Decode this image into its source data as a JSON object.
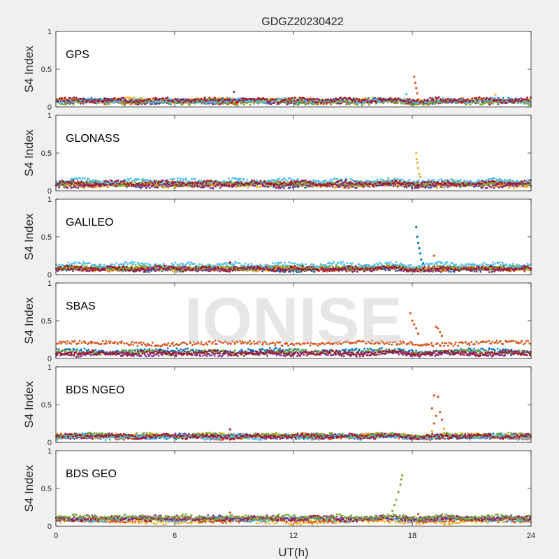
{
  "chart_data": {
    "type": "scatter",
    "title": "GDGZ20230422",
    "xlabel": "UT(h)",
    "ylabel": "S4 Index",
    "xlim": [
      0,
      24
    ],
    "ylim": [
      0,
      1
    ],
    "xticks": [
      "0",
      "6",
      "12",
      "18",
      "24"
    ],
    "yticks": [
      "0",
      "0.5",
      "1"
    ],
    "watermark": "IONISE",
    "series_colors": [
      "#0072BD",
      "#D95319",
      "#EDB120",
      "#7E2F8E",
      "#77AC30",
      "#4DBEEE",
      "#A2142F"
    ],
    "panels": [
      {
        "label": "GPS",
        "baseline": [
          {
            "color": "#0072BD",
            "level": 0.08
          },
          {
            "color": "#D95319",
            "level": 0.07
          },
          {
            "color": "#EDB120",
            "level": 0.09
          },
          {
            "color": "#7E2F8E",
            "level": 0.07
          },
          {
            "color": "#77AC30",
            "level": 0.06
          },
          {
            "color": "#4DBEEE",
            "level": 0.08
          },
          {
            "color": "#A2142F",
            "level": 0.09
          }
        ],
        "spikes": [
          {
            "color": "#D95319",
            "x": 18.1,
            "y": 0.4
          },
          {
            "color": "#D95319",
            "x": 18.15,
            "y": 0.32
          },
          {
            "color": "#D95319",
            "x": 18.2,
            "y": 0.25
          },
          {
            "color": "#D95319",
            "x": 18.25,
            "y": 0.18
          },
          {
            "color": "#4DBEEE",
            "x": 17.7,
            "y": 0.17
          },
          {
            "color": "#7E2F8E",
            "x": 9.0,
            "y": 0.2
          },
          {
            "color": "#EDB120",
            "x": 22.2,
            "y": 0.16
          }
        ]
      },
      {
        "label": "GLONASS",
        "baseline": [
          {
            "color": "#0072BD",
            "level": 0.08
          },
          {
            "color": "#D95319",
            "level": 0.09
          },
          {
            "color": "#EDB120",
            "level": 0.07
          },
          {
            "color": "#7E2F8E",
            "level": 0.07
          },
          {
            "color": "#77AC30",
            "level": 0.1
          },
          {
            "color": "#4DBEEE",
            "level": 0.13
          },
          {
            "color": "#A2142F",
            "level": 0.1
          }
        ],
        "spikes": [
          {
            "color": "#EDB120",
            "x": 18.2,
            "y": 0.5
          },
          {
            "color": "#EDB120",
            "x": 18.22,
            "y": 0.42
          },
          {
            "color": "#EDB120",
            "x": 18.25,
            "y": 0.37
          },
          {
            "color": "#EDB120",
            "x": 18.3,
            "y": 0.3
          },
          {
            "color": "#EDB120",
            "x": 18.35,
            "y": 0.22
          },
          {
            "color": "#EDB120",
            "x": 18.4,
            "y": 0.18
          }
        ]
      },
      {
        "label": "GALILEO",
        "baseline": [
          {
            "color": "#0072BD",
            "level": 0.07
          },
          {
            "color": "#D95319",
            "level": 0.08
          },
          {
            "color": "#EDB120",
            "level": 0.08
          },
          {
            "color": "#7E2F8E",
            "level": 0.07
          },
          {
            "color": "#77AC30",
            "level": 0.09
          },
          {
            "color": "#4DBEEE",
            "level": 0.13
          },
          {
            "color": "#A2142F",
            "level": 0.08
          }
        ],
        "spikes": [
          {
            "color": "#0072BD",
            "x": 18.2,
            "y": 0.63
          },
          {
            "color": "#0072BD",
            "x": 18.25,
            "y": 0.5
          },
          {
            "color": "#0072BD",
            "x": 18.3,
            "y": 0.42
          },
          {
            "color": "#0072BD",
            "x": 18.35,
            "y": 0.35
          },
          {
            "color": "#0072BD",
            "x": 18.4,
            "y": 0.28
          },
          {
            "color": "#0072BD",
            "x": 18.45,
            "y": 0.2
          },
          {
            "color": "#0072BD",
            "x": 18.55,
            "y": 0.15
          },
          {
            "color": "#D95319",
            "x": 19.1,
            "y": 0.25
          },
          {
            "color": "#A2142F",
            "x": 8.8,
            "y": 0.16
          }
        ]
      },
      {
        "label": "SBAS",
        "baseline": [
          {
            "color": "#D95319",
            "level": 0.2
          },
          {
            "color": "#0072BD",
            "level": 0.1
          },
          {
            "color": "#77AC30",
            "level": 0.08
          },
          {
            "color": "#7E2F8E",
            "level": 0.06
          },
          {
            "color": "#A2142F",
            "level": 0.07
          }
        ],
        "spikes": [
          {
            "color": "#D95319",
            "x": 17.9,
            "y": 0.6
          },
          {
            "color": "#D95319",
            "x": 18.0,
            "y": 0.5
          },
          {
            "color": "#D95319",
            "x": 18.1,
            "y": 0.45
          },
          {
            "color": "#D95319",
            "x": 18.2,
            "y": 0.4
          },
          {
            "color": "#D95319",
            "x": 18.3,
            "y": 0.33
          },
          {
            "color": "#D95319",
            "x": 19.2,
            "y": 0.42
          },
          {
            "color": "#D95319",
            "x": 19.3,
            "y": 0.4
          },
          {
            "color": "#D95319",
            "x": 19.4,
            "y": 0.35
          },
          {
            "color": "#D95319",
            "x": 19.5,
            "y": 0.3
          }
        ]
      },
      {
        "label": "BDS NGEO",
        "baseline": [
          {
            "color": "#0072BD",
            "level": 0.08
          },
          {
            "color": "#D95319",
            "level": 0.07
          },
          {
            "color": "#EDB120",
            "level": 0.09
          },
          {
            "color": "#7E2F8E",
            "level": 0.08
          },
          {
            "color": "#77AC30",
            "level": 0.09
          },
          {
            "color": "#4DBEEE",
            "level": 0.07
          },
          {
            "color": "#A2142F",
            "level": 0.08
          }
        ],
        "spikes": [
          {
            "color": "#D95319",
            "x": 19.1,
            "y": 0.62
          },
          {
            "color": "#D95319",
            "x": 19.3,
            "y": 0.6
          },
          {
            "color": "#D95319",
            "x": 19.0,
            "y": 0.45
          },
          {
            "color": "#D95319",
            "x": 19.4,
            "y": 0.4
          },
          {
            "color": "#D95319",
            "x": 19.2,
            "y": 0.35
          },
          {
            "color": "#D95319",
            "x": 19.5,
            "y": 0.3
          },
          {
            "color": "#D95319",
            "x": 19.1,
            "y": 0.25
          },
          {
            "color": "#EDB120",
            "x": 19.6,
            "y": 0.18
          },
          {
            "color": "#EDB120",
            "x": 19.0,
            "y": 0.15
          },
          {
            "color": "#A2142F",
            "x": 8.8,
            "y": 0.17
          }
        ]
      },
      {
        "label": "BDS GEO",
        "baseline": [
          {
            "color": "#EDB120",
            "level": 0.06
          },
          {
            "color": "#D95319",
            "level": 0.08
          },
          {
            "color": "#4DBEEE",
            "level": 0.09
          },
          {
            "color": "#A2142F",
            "level": 0.1
          },
          {
            "color": "#7E2F8E",
            "level": 0.11
          },
          {
            "color": "#77AC30",
            "level": 0.12
          }
        ],
        "spikes": [
          {
            "color": "#77AC30",
            "x": 17.5,
            "y": 0.67
          },
          {
            "color": "#77AC30",
            "x": 17.45,
            "y": 0.62
          },
          {
            "color": "#77AC30",
            "x": 17.4,
            "y": 0.55
          },
          {
            "color": "#77AC30",
            "x": 17.3,
            "y": 0.45
          },
          {
            "color": "#77AC30",
            "x": 17.2,
            "y": 0.35
          },
          {
            "color": "#77AC30",
            "x": 17.1,
            "y": 0.28
          },
          {
            "color": "#77AC30",
            "x": 17.0,
            "y": 0.2
          },
          {
            "color": "#D95319",
            "x": 8.8,
            "y": 0.18
          },
          {
            "color": "#D95319",
            "x": 18.3,
            "y": 0.16
          }
        ]
      }
    ]
  }
}
